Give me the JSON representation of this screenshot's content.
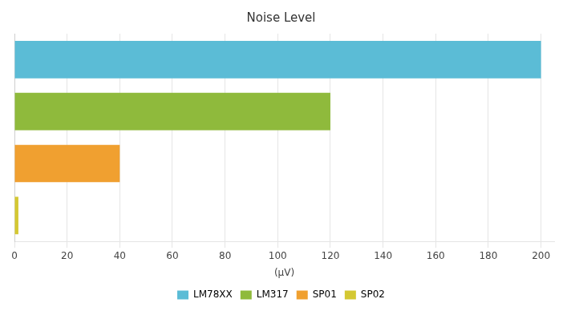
{
  "chart_data": {
    "type": "bar",
    "orientation": "horizontal",
    "title": "Noise Level",
    "xlabel": "(μV)",
    "categories": [
      "LM78XX",
      "LM317",
      "SP01",
      "SP02"
    ],
    "values": [
      200,
      120,
      40,
      1.5
    ],
    "colors": [
      "#5bbcd6",
      "#8fba3c",
      "#f0a030",
      "#d4c832"
    ],
    "xlim": [
      0,
      205
    ],
    "xticks": [
      0,
      20,
      40,
      60,
      80,
      100,
      120,
      140,
      160,
      180,
      200
    ],
    "grid": true,
    "legend": "bottom",
    "tick_labels": "x"
  }
}
